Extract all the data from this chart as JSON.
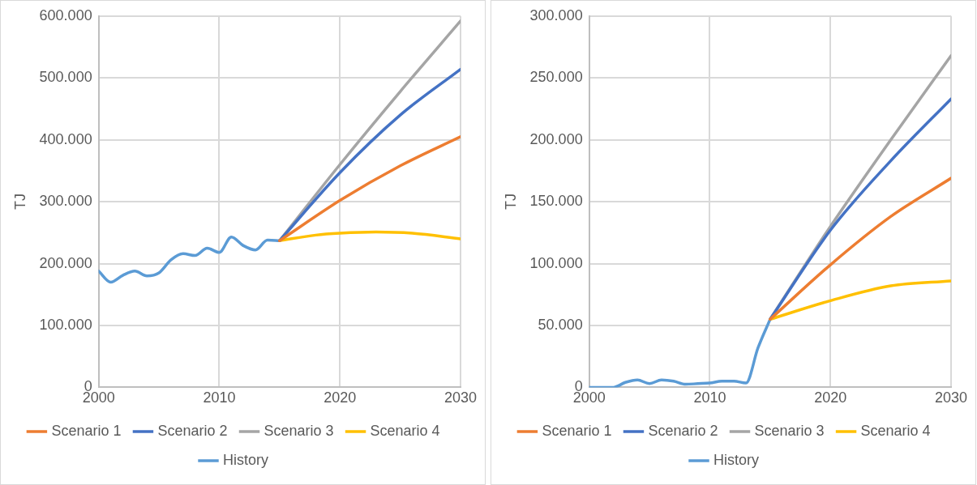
{
  "chart_data": [
    {
      "type": "line",
      "ylabel": "TJ",
      "xlim": [
        2000,
        2030
      ],
      "xticks": [
        2000,
        2010,
        2020,
        2030
      ],
      "ylim": [
        0,
        600000
      ],
      "yticks": [
        {
          "value": 0,
          "label": "0"
        },
        {
          "value": 100000,
          "label": "100.000"
        },
        {
          "value": 200000,
          "label": "200.000"
        },
        {
          "value": 300000,
          "label": "300.000"
        },
        {
          "value": 400000,
          "label": "400.000"
        },
        {
          "value": 500000,
          "label": "500.000"
        },
        {
          "value": 600000,
          "label": "600.000"
        }
      ],
      "grid": true,
      "legend": "bottom",
      "marker": "none",
      "line_style": "solid",
      "series": [
        {
          "name": "Scenario 1",
          "color": "#ed7d31",
          "x": [
            2015,
            2020,
            2025,
            2030
          ],
          "values": [
            237000,
            302000,
            358000,
            405000
          ]
        },
        {
          "name": "Scenario 2",
          "color": "#4472c4",
          "x": [
            2015,
            2020,
            2025,
            2030
          ],
          "values": [
            237000,
            347000,
            440000,
            514000
          ]
        },
        {
          "name": "Scenario 3",
          "color": "#a5a5a5",
          "x": [
            2015,
            2020,
            2025,
            2030
          ],
          "values": [
            237000,
            360000,
            478000,
            592000
          ]
        },
        {
          "name": "Scenario 4",
          "color": "#ffc000",
          "x": [
            2015,
            2018,
            2020,
            2023,
            2026,
            2030
          ],
          "values": [
            237000,
            246000,
            249000,
            251000,
            249000,
            240000
          ]
        },
        {
          "name": "History",
          "color": "#5b9bd5",
          "x": [
            2000,
            2001,
            2002,
            2003,
            2004,
            2005,
            2006,
            2007,
            2008,
            2009,
            2010,
            2011,
            2012,
            2013,
            2014,
            2015
          ],
          "values": [
            188000,
            170000,
            181000,
            188000,
            180000,
            185000,
            206000,
            216000,
            213000,
            225000,
            218000,
            243000,
            229000,
            222000,
            238000,
            237000
          ]
        }
      ]
    },
    {
      "type": "line",
      "ylabel": "TJ",
      "xlim": [
        2000,
        2030
      ],
      "xticks": [
        2000,
        2010,
        2020,
        2030
      ],
      "ylim": [
        0,
        300000
      ],
      "yticks": [
        {
          "value": 0,
          "label": "0"
        },
        {
          "value": 50000,
          "label": "50.000"
        },
        {
          "value": 100000,
          "label": "100.000"
        },
        {
          "value": 150000,
          "label": "150.000"
        },
        {
          "value": 200000,
          "label": "200.000"
        },
        {
          "value": 250000,
          "label": "250.000"
        },
        {
          "value": 300000,
          "label": "300.000"
        }
      ],
      "grid": true,
      "legend": "bottom",
      "marker": "none",
      "line_style": "solid",
      "series": [
        {
          "name": "Scenario 1",
          "color": "#ed7d31",
          "x": [
            2015,
            2020,
            2025,
            2030
          ],
          "values": [
            55000,
            99000,
            138000,
            169000
          ]
        },
        {
          "name": "Scenario 2",
          "color": "#4472c4",
          "x": [
            2015,
            2020,
            2025,
            2030
          ],
          "values": [
            55000,
            127000,
            183000,
            233000
          ]
        },
        {
          "name": "Scenario 3",
          "color": "#a5a5a5",
          "x": [
            2015,
            2020,
            2025,
            2030
          ],
          "values": [
            55000,
            130000,
            200000,
            268000
          ]
        },
        {
          "name": "Scenario 4",
          "color": "#ffc000",
          "x": [
            2015,
            2020,
            2025,
            2030
          ],
          "values": [
            55000,
            70000,
            82000,
            86000
          ]
        },
        {
          "name": "History",
          "color": "#5b9bd5",
          "x": [
            2000,
            2001,
            2002,
            2003,
            2004,
            2005,
            2006,
            2007,
            2008,
            2009,
            2010,
            2011,
            2012,
            2013,
            2014,
            2015
          ],
          "values": [
            0,
            0,
            0,
            4000,
            6000,
            3000,
            6000,
            5000,
            2500,
            3000,
            3500,
            5000,
            5000,
            3500,
            32000,
            55000
          ]
        }
      ]
    }
  ]
}
